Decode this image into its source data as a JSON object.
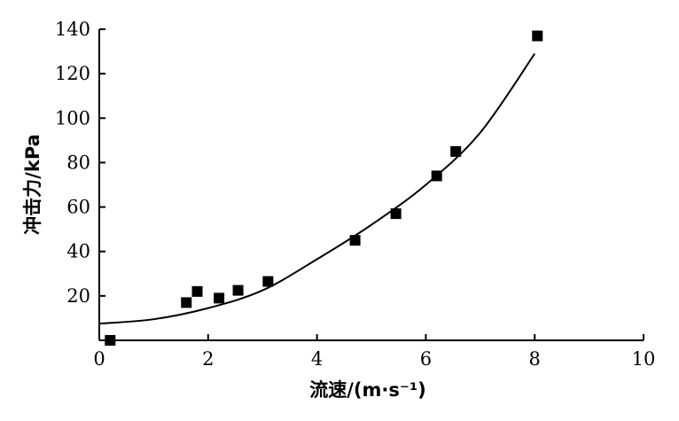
{
  "chart_data": {
    "type": "scatter",
    "title": "",
    "xlabel": "流速/(m·s⁻¹)",
    "ylabel": "冲击力/kPa",
    "xlim": [
      0,
      10
    ],
    "ylim": [
      0,
      140
    ],
    "x_ticks": [
      0,
      2,
      4,
      6,
      8,
      10
    ],
    "y_ticks": [
      20,
      40,
      60,
      80,
      100,
      120,
      140
    ],
    "grid": false,
    "legend": "none",
    "colors": {
      "marker": "#000000",
      "line": "#000000"
    },
    "series": [
      {
        "type": "scatter",
        "marker": "square",
        "points": [
          {
            "x": 0.2,
            "y": 0
          },
          {
            "x": 1.6,
            "y": 17
          },
          {
            "x": 1.8,
            "y": 22
          },
          {
            "x": 2.2,
            "y": 19
          },
          {
            "x": 2.55,
            "y": 22.5
          },
          {
            "x": 3.1,
            "y": 26.5
          },
          {
            "x": 4.7,
            "y": 45
          },
          {
            "x": 5.45,
            "y": 57
          },
          {
            "x": 6.2,
            "y": 74
          },
          {
            "x": 6.55,
            "y": 85
          },
          {
            "x": 8.05,
            "y": 137
          }
        ]
      },
      {
        "type": "line",
        "smooth": true,
        "points": [
          {
            "x": 0,
            "y": 7.5
          },
          {
            "x": 1,
            "y": 9.5
          },
          {
            "x": 2,
            "y": 14.5
          },
          {
            "x": 3,
            "y": 22.5
          },
          {
            "x": 4,
            "y": 36.5
          },
          {
            "x": 5,
            "y": 52
          },
          {
            "x": 6,
            "y": 70
          },
          {
            "x": 7,
            "y": 93.5
          },
          {
            "x": 8,
            "y": 129
          }
        ]
      }
    ]
  }
}
